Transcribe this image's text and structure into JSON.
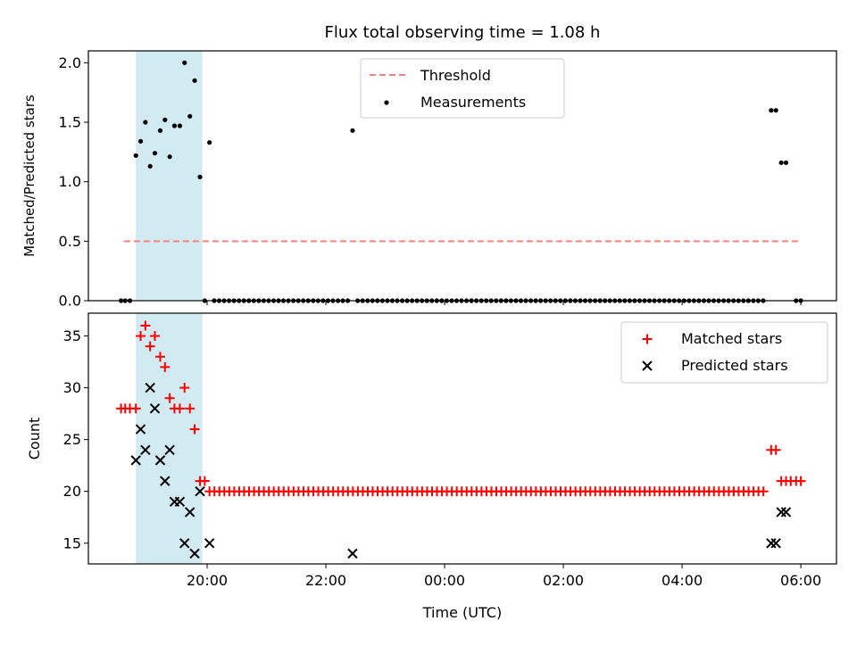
{
  "chart_data": [
    {
      "type": "scatter",
      "title": "Flux total observing time = 1.08 h",
      "xlabel": "",
      "ylabel": "Matched/Predicted stars",
      "x_unit": "hours UTC (relative to 00:00 of the night, negative = evening)",
      "xlim": [
        -6.0,
        6.6
      ],
      "ylim": [
        0.0,
        2.1
      ],
      "yticks": [
        "0.0",
        "0.5",
        "1.0",
        "1.5",
        "2.0"
      ],
      "threshold": {
        "value": 0.5,
        "label": "Threshold",
        "color": "#ff7f7f",
        "x_range": [
          -5.4,
          5.95
        ]
      },
      "shaded_region": {
        "x_range": [
          -5.2,
          -4.08
        ],
        "color": "#add8e6"
      },
      "legend": {
        "position": "upper center",
        "entries": [
          "Threshold",
          "Measurements"
        ]
      },
      "series": [
        {
          "name": "Measurements",
          "color": "#000000",
          "points": [
            [
              -5.45,
              0.0
            ],
            [
              -5.38,
              0.0
            ],
            [
              -5.3,
              0.0
            ],
            [
              -5.2,
              1.22
            ],
            [
              -5.12,
              1.34
            ],
            [
              -5.04,
              1.5
            ],
            [
              -4.96,
              1.13
            ],
            [
              -4.88,
              1.24
            ],
            [
              -4.79,
              1.43
            ],
            [
              -4.71,
              1.52
            ],
            [
              -4.63,
              1.21
            ],
            [
              -4.55,
              1.47
            ],
            [
              -4.46,
              1.47
            ],
            [
              -4.38,
              2.0
            ],
            [
              -4.29,
              1.55
            ],
            [
              -4.21,
              1.85
            ],
            [
              -4.12,
              1.04
            ],
            [
              -4.04,
              0.0
            ],
            [
              -3.96,
              1.33
            ],
            [
              -1.55,
              1.43
            ],
            [
              5.5,
              1.6
            ],
            [
              5.58,
              1.6
            ],
            [
              5.67,
              1.16
            ],
            [
              5.75,
              1.16
            ]
          ],
          "zero_run": {
            "from": -3.88,
            "to": 5.42,
            "step": 0.0833,
            "value": 0.0,
            "skip": [
              [
                -2.6,
                -2.55
              ],
              [
                -1.6,
                -1.5
              ]
            ]
          },
          "extra_zero_points": [
            5.92,
            6.0
          ]
        }
      ]
    },
    {
      "type": "scatter",
      "title": "",
      "xlabel": "Time (UTC)",
      "ylabel": "Count",
      "xlim": [
        -6.0,
        6.6
      ],
      "ylim": [
        13.0,
        37.2
      ],
      "yticks": [
        "15",
        "20",
        "25",
        "30",
        "35"
      ],
      "xticks": [
        {
          "value": -4.0,
          "label": "20:00"
        },
        {
          "value": -2.0,
          "label": "22:00"
        },
        {
          "value": 0.0,
          "label": "00:00"
        },
        {
          "value": 2.0,
          "label": "02:00"
        },
        {
          "value": 4.0,
          "label": "04:00"
        },
        {
          "value": 6.0,
          "label": "06:00"
        }
      ],
      "shaded_region": {
        "x_range": [
          -5.2,
          -4.08
        ],
        "color": "#add8e6"
      },
      "legend": {
        "position": "upper right",
        "entries": [
          "Matched stars",
          "Predicted stars"
        ]
      },
      "series": [
        {
          "name": "Matched stars",
          "marker": "+",
          "color": "#ff0000",
          "points": [
            [
              -5.45,
              28
            ],
            [
              -5.38,
              28
            ],
            [
              -5.3,
              28
            ],
            [
              -5.2,
              28
            ],
            [
              -5.12,
              35
            ],
            [
              -5.04,
              36
            ],
            [
              -4.96,
              34
            ],
            [
              -4.88,
              35
            ],
            [
              -4.79,
              33
            ],
            [
              -4.71,
              32
            ],
            [
              -4.63,
              29
            ],
            [
              -4.55,
              28
            ],
            [
              -4.46,
              28
            ],
            [
              -4.38,
              30
            ],
            [
              -4.29,
              28
            ],
            [
              -4.21,
              26
            ],
            [
              -4.12,
              21
            ],
            [
              -4.04,
              21
            ],
            [
              5.5,
              24
            ],
            [
              5.58,
              24
            ],
            [
              5.67,
              21
            ],
            [
              5.75,
              21
            ],
            [
              5.83,
              21
            ],
            [
              5.92,
              21
            ],
            [
              6.0,
              21
            ]
          ],
          "constant_run": {
            "from": -3.96,
            "to": 5.42,
            "step": 0.0833,
            "value": 20
          }
        },
        {
          "name": "Predicted stars",
          "marker": "x",
          "color": "#000000",
          "points": [
            [
              -5.2,
              23
            ],
            [
              -5.12,
              26
            ],
            [
              -5.04,
              24
            ],
            [
              -4.96,
              30
            ],
            [
              -4.88,
              28
            ],
            [
              -4.79,
              23
            ],
            [
              -4.71,
              21
            ],
            [
              -4.63,
              24
            ],
            [
              -4.55,
              19
            ],
            [
              -4.46,
              19
            ],
            [
              -4.38,
              15
            ],
            [
              -4.29,
              18
            ],
            [
              -4.21,
              14
            ],
            [
              -4.12,
              20
            ],
            [
              -3.96,
              15
            ],
            [
              -1.55,
              14
            ],
            [
              5.5,
              15
            ],
            [
              5.58,
              15
            ],
            [
              5.67,
              18
            ],
            [
              5.75,
              18
            ]
          ]
        }
      ]
    }
  ]
}
